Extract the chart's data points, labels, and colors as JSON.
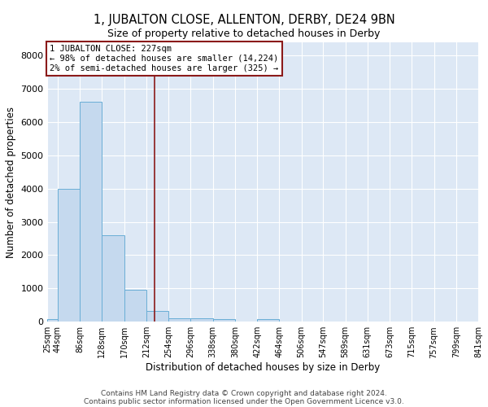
{
  "title": "1, JUBALTON CLOSE, ALLENTON, DERBY, DE24 9BN",
  "subtitle": "Size of property relative to detached houses in Derby",
  "xlabel": "Distribution of detached houses by size in Derby",
  "ylabel": "Number of detached properties",
  "bar_color": "#c5d9ee",
  "bar_edge_color": "#6aaed6",
  "background_color": "#dde8f5",
  "grid_color": "white",
  "vline_color": "#8b1a1a",
  "vline_x": 227,
  "annotation_line1": "1 JUBALTON CLOSE: 227sqm",
  "annotation_line2": "← 98% of detached houses are smaller (14,224)",
  "annotation_line3": "2% of semi-detached houses are larger (325) →",
  "annotation_box_color": "white",
  "annotation_box_edge_color": "#8b1a1a",
  "bin_edges": [
    25,
    44,
    86,
    128,
    170,
    212,
    254,
    296,
    338,
    380,
    422,
    464,
    506,
    547,
    589,
    631,
    673,
    715,
    757,
    799,
    841
  ],
  "bin_counts": [
    75,
    4000,
    6600,
    2600,
    950,
    320,
    110,
    100,
    75,
    0,
    75,
    0,
    0,
    0,
    0,
    0,
    0,
    0,
    0,
    0
  ],
  "yticks": [
    0,
    1000,
    2000,
    3000,
    4000,
    5000,
    6000,
    7000,
    8000
  ],
  "ylim": [
    0,
    8400
  ],
  "xtick_labels": [
    "25sqm",
    "44sqm",
    "86sqm",
    "128sqm",
    "170sqm",
    "212sqm",
    "254sqm",
    "296sqm",
    "338sqm",
    "380sqm",
    "422sqm",
    "464sqm",
    "506sqm",
    "547sqm",
    "589sqm",
    "631sqm",
    "673sqm",
    "715sqm",
    "757sqm",
    "799sqm",
    "841sqm"
  ],
  "footer_line1": "Contains HM Land Registry data © Crown copyright and database right 2024.",
  "footer_line2": "Contains public sector information licensed under the Open Government Licence v3.0."
}
